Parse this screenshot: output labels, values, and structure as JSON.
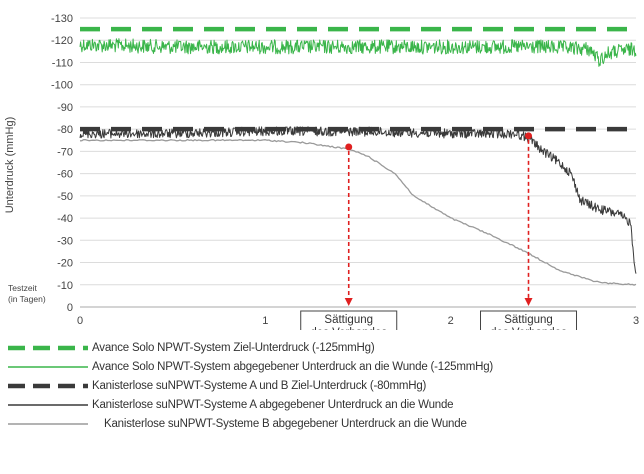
{
  "chart_data": {
    "type": "line",
    "ylabel": "Unterdruck (mmHg)",
    "xlabel": "Testzeit (in Tagen)",
    "xlabel_lines": [
      "Testzeit",
      "(in Tagen)"
    ],
    "ylim": [
      0,
      -130
    ],
    "xlim": [
      0,
      3
    ],
    "y_ticks": [
      "-130",
      "-120",
      "-110",
      "-100",
      "-90",
      "-80",
      "-70",
      "-60",
      "-50",
      "-40",
      "-30",
      "-20",
      "-10",
      "0"
    ],
    "x_ticks": [
      "0",
      "1",
      "2",
      "3"
    ],
    "grid": true,
    "series": [
      {
        "name": "Avance Solo NPWT-System Ziel-Unterdruck (-125mmHg)",
        "style": "dashed",
        "color": "#3ab54a",
        "x": [
          0,
          3
        ],
        "y": [
          -125,
          -125
        ]
      },
      {
        "name": "Avance Solo NPWT-System abgegebener Unterdruck an die Wunde (-125mmHg)",
        "style": "solid-noisy",
        "color": "#3ab54a",
        "x": [
          0,
          0.5,
          1.0,
          1.5,
          2.0,
          2.5,
          2.75,
          2.8,
          2.85,
          2.9,
          3.0
        ],
        "y": [
          -118,
          -117,
          -117,
          -117,
          -117,
          -117,
          -116,
          -111,
          -114,
          -115,
          -116
        ]
      },
      {
        "name": "Kanisterlose suNPWT-Systeme A und B Ziel-Unterdruck (-80mmHg)",
        "style": "dashed",
        "color": "#3a3a3a",
        "x": [
          0,
          3
        ],
        "y": [
          -80,
          -80
        ]
      },
      {
        "name": "Kanisterlose suNPWT-Systeme A abgegebener Unterdruck an die Wunde",
        "style": "solid-noisy",
        "color": "#3a3a3a",
        "x": [
          0,
          0.5,
          1.0,
          1.5,
          2.0,
          2.35,
          2.42,
          2.5,
          2.6,
          2.65,
          2.7,
          2.8,
          2.9,
          2.97,
          3.0
        ],
        "y": [
          -78,
          -78,
          -79,
          -79,
          -78,
          -78,
          -76,
          -70,
          -64,
          -60,
          -48,
          -44,
          -42,
          -38,
          -14
        ]
      },
      {
        "name": "Kanisterlose suNPWT-Systeme B abgegebener Unterdruck an die Wunde",
        "style": "solid",
        "color": "#9a9a9a",
        "x": [
          0,
          0.5,
          1.0,
          1.2,
          1.45,
          1.55,
          1.7,
          1.8,
          2.0,
          2.2,
          2.4,
          2.6,
          2.8,
          3.0
        ],
        "y": [
          -75,
          -75,
          -75,
          -74,
          -71,
          -68,
          -60,
          -50,
          -40,
          -33,
          -25,
          -16,
          -11,
          -10
        ]
      }
    ],
    "annotations": [
      {
        "label": "Sättigung des Verbandes",
        "lines": [
          "Sättigung",
          "des Verbandes"
        ],
        "x": 1.45,
        "y": -72,
        "color": "#e02020"
      },
      {
        "label": "Sättigung des Verbandes",
        "lines": [
          "Sättigung",
          "des Verbandes"
        ],
        "x": 2.42,
        "y": -77,
        "color": "#e02020"
      }
    ]
  },
  "legend": [
    {
      "label": "Avance Solo NPWT-System Ziel-Unterdruck (-125mmHg)",
      "style": "dashed",
      "color": "#3ab54a"
    },
    {
      "label": "Avance Solo NPWT-System abgegebener Unterdruck an die Wunde (-125mmHg)",
      "style": "solid",
      "color": "#3ab54a"
    },
    {
      "label": "Kanisterlose suNPWT-Systeme A und B Ziel-Unterdruck (-80mmHg)",
      "style": "dashed",
      "color": "#3a3a3a"
    },
    {
      "label": "Kanisterlose suNPWT-Systeme A abgegebener Unterdruck an die Wunde",
      "style": "solid",
      "color": "#3a3a3a"
    },
    {
      "label": "Kanisterlose suNPWT-Systeme B abgegebener Unterdruck an die Wunde",
      "style": "solid",
      "color": "#9a9a9a"
    }
  ]
}
